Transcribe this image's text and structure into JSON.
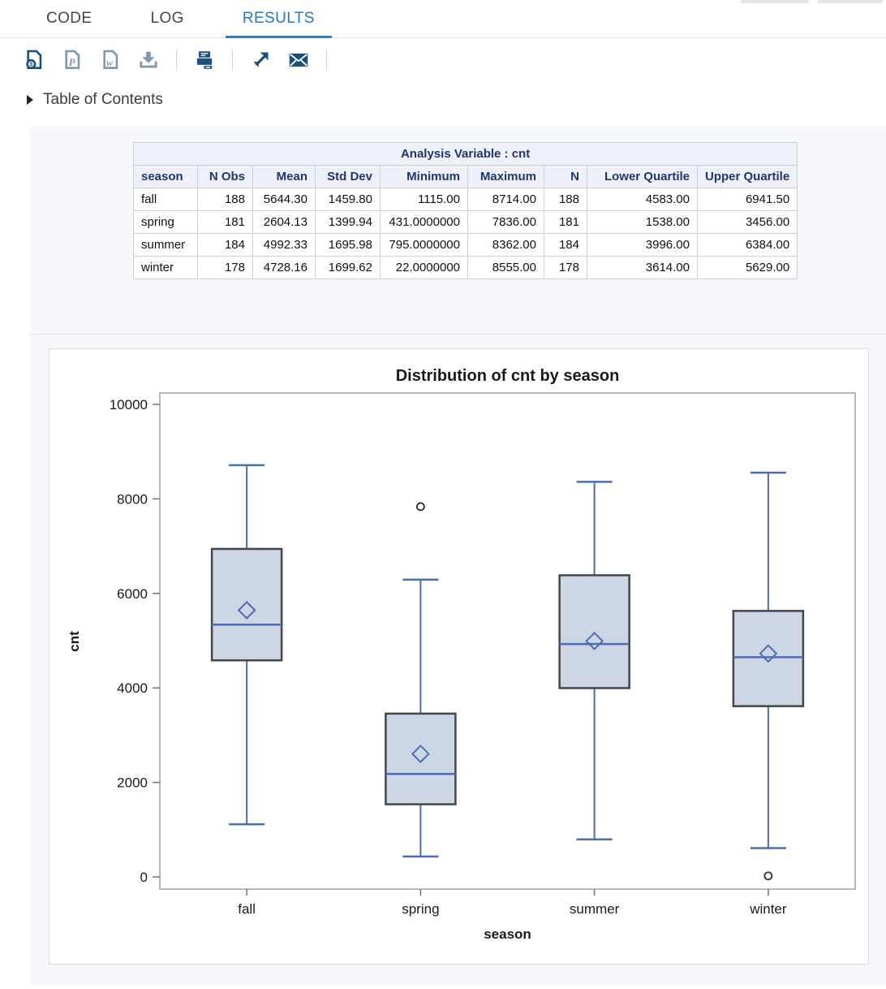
{
  "tabs": {
    "items": [
      {
        "label": "CODE",
        "active": false
      },
      {
        "label": "LOG",
        "active": false
      },
      {
        "label": "RESULTS",
        "active": true
      }
    ]
  },
  "toolbar": {
    "icons": [
      {
        "name": "download-html-icon"
      },
      {
        "name": "download-pdf-icon"
      },
      {
        "name": "download-word-icon"
      },
      {
        "name": "download-file-icon"
      },
      {
        "name": "print-icon"
      },
      {
        "name": "open-in-new-window-icon"
      },
      {
        "name": "email-icon"
      }
    ]
  },
  "toc": {
    "label": "Table of Contents",
    "collapsed": true
  },
  "stats_table": {
    "title": "Analysis Variable : cnt",
    "columns": [
      "season",
      "N Obs",
      "Mean",
      "Std Dev",
      "Minimum",
      "Maximum",
      "N",
      "Lower Quartile",
      "Upper Quartile"
    ],
    "rows": [
      [
        "fall",
        "188",
        "5644.30",
        "1459.80",
        "1115.00",
        "8714.00",
        "188",
        "4583.00",
        "6941.50"
      ],
      [
        "spring",
        "181",
        "2604.13",
        "1399.94",
        "431.0000000",
        "7836.00",
        "181",
        "1538.00",
        "3456.00"
      ],
      [
        "summer",
        "184",
        "4992.33",
        "1695.98",
        "795.0000000",
        "8362.00",
        "184",
        "3996.00",
        "6384.00"
      ],
      [
        "winter",
        "178",
        "4728.16",
        "1699.62",
        "22.0000000",
        "8555.00",
        "178",
        "3614.00",
        "5629.00"
      ]
    ]
  },
  "chart_data": {
    "type": "boxplot",
    "title": "Distribution of cnt by season",
    "xlabel": "season",
    "ylabel": "cnt",
    "ylim": [
      0,
      10000
    ],
    "yticks": [
      0,
      2000,
      4000,
      6000,
      8000,
      10000
    ],
    "categories": [
      "fall",
      "spring",
      "summer",
      "winter"
    ],
    "series": [
      {
        "category": "fall",
        "whisker_low": 1115,
        "q1": 4583,
        "median": 5340,
        "q3": 6941.5,
        "whisker_high": 8714,
        "mean": 5644.3,
        "outliers": []
      },
      {
        "category": "spring",
        "whisker_low": 431,
        "q1": 1538,
        "median": 2180,
        "q3": 3456,
        "whisker_high": 6290,
        "mean": 2604.13,
        "outliers": [
          7836
        ]
      },
      {
        "category": "summer",
        "whisker_low": 795,
        "q1": 3996,
        "median": 4930,
        "q3": 6384,
        "whisker_high": 8362,
        "mean": 4992.33,
        "outliers": []
      },
      {
        "category": "winter",
        "whisker_low": 610,
        "q1": 3614,
        "median": 4650,
        "q3": 5629,
        "whisker_high": 8555,
        "mean": 4728.16,
        "outliers": [
          22
        ]
      }
    ],
    "grid": false,
    "legend": "none"
  },
  "colors": {
    "tab_active": "#2478bb",
    "tab_underline": "#2e7fc8",
    "icon_navy": "#1d4f7e",
    "icon_slate": "#8096ae",
    "section_bg": "#f7f8fc",
    "table_header_bg": "#eef1f8",
    "table_header_text": "#20356e",
    "box_fill": "#ccd6e4",
    "box_stroke": "#43464b",
    "whisker_blue": "#4c6cb3",
    "outlier_stroke": "#2d2d2d",
    "frame_stroke": "#9aa0a6",
    "tick_stroke": "#6f7478",
    "chart_text": "#1a1a1a"
  }
}
